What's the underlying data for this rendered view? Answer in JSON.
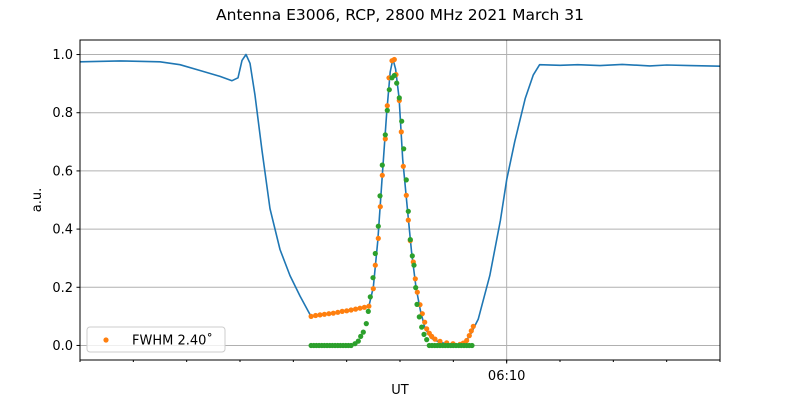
{
  "chart_data": {
    "type": "line",
    "title": "Antenna E3006, RCP, 2800 MHz 2021 March 31",
    "xlabel": "UT",
    "ylabel": "a.u.",
    "xlim": [
      "06:02:00",
      "06:14:00"
    ],
    "ylim": [
      -0.05,
      1.05
    ],
    "x_major_ticks": [
      "06:10"
    ],
    "x_minor_tick_step_minutes": 1,
    "y_ticks": [
      "0.0",
      "0.2",
      "0.4",
      "0.6",
      "0.8",
      "1.0"
    ],
    "grid": true,
    "legend": {
      "placement": "lower-left",
      "entries": [
        "FWHM 2.40˚"
      ]
    },
    "colors": {
      "blue": "#1f77b4",
      "orange": "#ff7f0e",
      "green": "#2ca02c"
    },
    "series": [
      {
        "style": "line",
        "color": "#1f77b4",
        "points": [
          [
            "06:02:00",
            0.975
          ],
          [
            "06:02:45",
            0.978
          ],
          [
            "06:03:30",
            0.975
          ],
          [
            "06:03:52.5",
            0.965
          ],
          [
            "06:04:15",
            0.945
          ],
          [
            "06:04:37.5",
            0.925
          ],
          [
            "06:04:51",
            0.91
          ],
          [
            "06:04:57.8",
            0.92
          ],
          [
            "06:05:02.3",
            0.98
          ],
          [
            "06:05:06.8",
            1.0
          ],
          [
            "06:05:11.3",
            0.97
          ],
          [
            "06:05:16.9",
            0.86
          ],
          [
            "06:05:24.8",
            0.67
          ],
          [
            "06:05:33.8",
            0.47
          ],
          [
            "06:05:45",
            0.33
          ],
          [
            "06:05:56.3",
            0.24
          ],
          [
            "06:06:07.5",
            0.17
          ],
          [
            "06:06:19.9",
            0.1
          ],
          [
            "06:06:40",
            0.108
          ],
          [
            "06:07:00",
            0.12
          ],
          [
            "06:07:25",
            0.135
          ],
          [
            "06:07:30",
            0.2
          ],
          [
            "06:07:35",
            0.36
          ],
          [
            "06:07:40",
            0.58
          ],
          [
            "06:07:45",
            0.8
          ],
          [
            "06:07:49",
            0.94
          ],
          [
            "06:07:52",
            0.985
          ],
          [
            "06:07:55",
            0.95
          ],
          [
            "06:07:59",
            0.85
          ],
          [
            "06:08:03",
            0.64
          ],
          [
            "06:08:08",
            0.48
          ],
          [
            "06:08:13",
            0.32
          ],
          [
            "06:08:18",
            0.2
          ],
          [
            "06:08:23",
            0.12
          ],
          [
            "06:08:28",
            0.06
          ],
          [
            "06:08:35",
            0.025
          ],
          [
            "06:08:45",
            0.01
          ],
          [
            "06:09:00",
            0.003
          ],
          [
            "06:09:10",
            0.005
          ],
          [
            "06:09:18",
            0.03
          ],
          [
            "06:09:28",
            0.09
          ],
          [
            "06:09:41",
            0.24
          ],
          [
            "06:09:53",
            0.43
          ],
          [
            "06:10:00",
            0.57
          ],
          [
            "06:10:09",
            0.7
          ],
          [
            "06:10:21",
            0.85
          ],
          [
            "06:10:30",
            0.93
          ],
          [
            "06:10:37",
            0.965
          ],
          [
            "06:11:00",
            0.963
          ],
          [
            "06:11:20",
            0.965
          ],
          [
            "06:11:45",
            0.962
          ],
          [
            "06:12:10",
            0.966
          ],
          [
            "06:12:41",
            0.961
          ],
          [
            "06:13:00",
            0.964
          ],
          [
            "06:13:26",
            0.962
          ],
          [
            "06:14:00",
            0.96
          ]
        ]
      },
      {
        "name": "FWHM 2.40˚",
        "style": "points",
        "color": "#ff7f0e",
        "points": [
          [
            "06:06:20",
            0.1
          ],
          [
            "06:06:25",
            0.103
          ],
          [
            "06:06:30",
            0.105
          ],
          [
            "06:06:35",
            0.107
          ],
          [
            "06:06:40",
            0.109
          ],
          [
            "06:06:45",
            0.111
          ],
          [
            "06:06:50",
            0.114
          ],
          [
            "06:06:55",
            0.117
          ],
          [
            "06:07:00",
            0.119
          ],
          [
            "06:07:05",
            0.122
          ],
          [
            "06:07:10",
            0.125
          ],
          [
            "06:07:15",
            0.128
          ],
          [
            "06:07:20",
            0.131
          ],
          [
            "06:07:25",
            0.135
          ],
          [
            "06:07:30",
            0.195
          ],
          [
            "06:07:32.2",
            0.276
          ],
          [
            "06:07:35.6",
            0.368
          ],
          [
            "06:07:37.8",
            0.477
          ],
          [
            "06:07:40.1",
            0.585
          ],
          [
            "06:07:43.5",
            0.71
          ],
          [
            "06:07:45.7",
            0.824
          ],
          [
            "06:07:47.6",
            0.92
          ],
          [
            "06:07:51",
            0.979
          ],
          [
            "06:07:53.6",
            0.983
          ],
          [
            "06:07:55.5",
            0.931
          ],
          [
            "06:07:59.2",
            0.842
          ],
          [
            "06:08:01.5",
            0.734
          ],
          [
            "06:08:03.7",
            0.616
          ],
          [
            "06:08:07.1",
            0.516
          ],
          [
            "06:08:09.3",
            0.431
          ],
          [
            "06:08:11.6",
            0.36
          ],
          [
            "06:08:15",
            0.287
          ],
          [
            "06:08:17.2",
            0.229
          ],
          [
            "06:08:19.5",
            0.183
          ],
          [
            "06:08:22.5",
            0.14
          ],
          [
            "06:08:25.1",
            0.109
          ],
          [
            "06:08:27.8",
            0.08
          ],
          [
            "06:08:30",
            0.057
          ],
          [
            "06:08:33",
            0.042
          ],
          [
            "06:08:35.7",
            0.031
          ],
          [
            "06:08:39.4",
            0.022
          ],
          [
            "06:08:45",
            0.014
          ],
          [
            "06:08:52.5",
            0.009
          ],
          [
            "06:08:59.6",
            0.006
          ],
          [
            "06:09:07.5",
            0.004
          ],
          [
            "06:09:11.2",
            0.008
          ],
          [
            "06:09:15",
            0.017
          ],
          [
            "06:09:18",
            0.034
          ],
          [
            "06:09:20.2",
            0.05
          ],
          [
            "06:09:22.5",
            0.066
          ]
        ]
      },
      {
        "style": "points",
        "color": "#2ca02c",
        "points": [
          [
            "06:06:20",
            0
          ],
          [
            "06:06:23",
            0
          ],
          [
            "06:06:26",
            0
          ],
          [
            "06:06:29",
            0
          ],
          [
            "06:06:32",
            0
          ],
          [
            "06:06:35",
            0
          ],
          [
            "06:06:38",
            0
          ],
          [
            "06:06:41",
            0
          ],
          [
            "06:06:44",
            0
          ],
          [
            "06:06:47",
            0
          ],
          [
            "06:06:50",
            0
          ],
          [
            "06:06:53",
            0
          ],
          [
            "06:06:56",
            0
          ],
          [
            "06:06:59",
            0
          ],
          [
            "06:07:02",
            0
          ],
          [
            "06:07:05",
            0
          ],
          [
            "06:07:09.4",
            0.006
          ],
          [
            "06:07:13.1",
            0.015
          ],
          [
            "06:07:15.8",
            0.031
          ],
          [
            "06:07:18.7",
            0.046
          ],
          [
            "06:07:22.1",
            0.075
          ],
          [
            "06:07:24.3",
            0.117
          ],
          [
            "06:07:26.6",
            0.167
          ],
          [
            "06:07:29.6",
            0.233
          ],
          [
            "06:07:32.2",
            0.316
          ],
          [
            "06:07:35.6",
            0.41
          ],
          [
            "06:07:37.5",
            0.514
          ],
          [
            "06:07:40.1",
            0.62
          ],
          [
            "06:07:43.5",
            0.724
          ],
          [
            "06:07:45.7",
            0.808
          ],
          [
            "06:07:48",
            0.879
          ],
          [
            "06:07:51",
            0.92
          ],
          [
            "06:07:53.6",
            0.928
          ],
          [
            "06:07:56.3",
            0.902
          ],
          [
            "06:07:59.2",
            0.851
          ],
          [
            "06:08:01.9",
            0.771
          ],
          [
            "06:08:04.2",
            0.676
          ],
          [
            "06:08:07.1",
            0.569
          ],
          [
            "06:08:09.3",
            0.461
          ],
          [
            "06:08:11.6",
            0.364
          ],
          [
            "06:08:13.8",
            0.308
          ],
          [
            "06:08:15.8",
            0.276
          ],
          [
            "06:08:17.7",
            0.199
          ],
          [
            "06:08:19.1",
            0.141
          ],
          [
            "06:08:21.7",
            0.098
          ],
          [
            "06:08:24.4",
            0.063
          ],
          [
            "06:08:27",
            0.038
          ],
          [
            "06:08:30",
            0.02
          ],
          [
            "06:08:33",
            0
          ],
          [
            "06:08:36",
            0
          ],
          [
            "06:08:39",
            0
          ],
          [
            "06:08:42",
            0
          ],
          [
            "06:08:45",
            0
          ],
          [
            "06:08:48",
            0
          ],
          [
            "06:08:51",
            0
          ],
          [
            "06:08:54",
            0
          ],
          [
            "06:08:57",
            0
          ],
          [
            "06:09:00",
            0
          ],
          [
            "06:09:03",
            0
          ],
          [
            "06:09:06",
            0
          ],
          [
            "06:09:09",
            0
          ],
          [
            "06:09:12",
            0
          ],
          [
            "06:09:15",
            0
          ],
          [
            "06:09:18",
            0
          ],
          [
            "06:09:21",
            0
          ]
        ]
      }
    ]
  }
}
